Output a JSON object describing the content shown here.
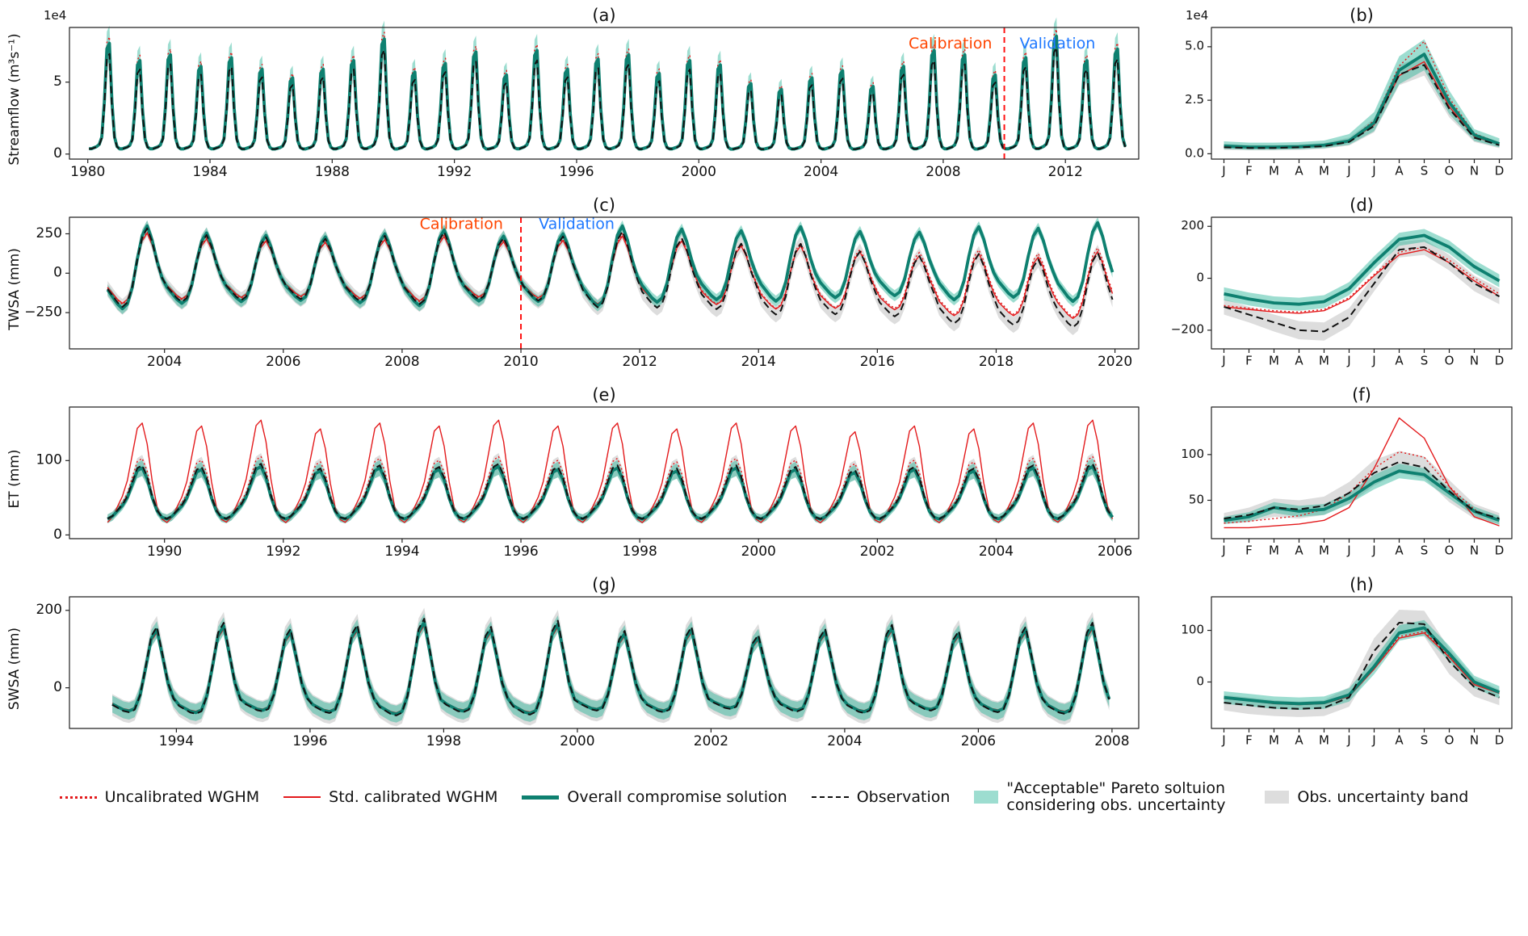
{
  "colors": {
    "red": "#e31a1c",
    "teal": "#0e8070",
    "teal_band": "rgba(38,180,150,0.45)",
    "gray_band": "rgba(180,180,180,0.45)",
    "black": "#111111",
    "calibration": "#ff4500",
    "validation": "#1e78ff",
    "vline": "#ff1111"
  },
  "legend": {
    "items": [
      {
        "swatch": "dotted-red-line",
        "label": "Uncalibrated WGHM"
      },
      {
        "swatch": "solid-red-line",
        "label": "Std. calibrated WGHM"
      },
      {
        "swatch": "thick-teal-line",
        "label": "Overall compromise solution"
      },
      {
        "swatch": "dashed-black-line",
        "label": "Observation"
      },
      {
        "swatch": "teal-band-box",
        "label": "\"Acceptable\" Pareto soltuion considering obs. uncertainty"
      },
      {
        "swatch": "gray-band-box",
        "label": "Obs. uncertainty band"
      }
    ]
  },
  "chart_data": [
    {
      "id": "a",
      "type": "line",
      "kind": "timeseries",
      "panel_label": "(a)",
      "ylabel": "Streamflow (m³s⁻¹)",
      "offset_text": "1e4",
      "year_start": 1980,
      "xticks": [
        1980,
        1984,
        1988,
        1992,
        1996,
        2000,
        2004,
        2008,
        2012
      ],
      "ylim": [
        -0.35,
        8.8
      ],
      "yticks": [
        0,
        5
      ],
      "ytick_labels": [
        "0",
        "5"
      ],
      "base": 0.3,
      "shape": [
        0.01,
        0.01,
        0.02,
        0.03,
        0.05,
        0.12,
        0.45,
        0.95,
        1.0,
        0.45,
        0.12,
        0.03
      ],
      "amp": [
        7.4,
        6.2,
        6.6,
        5.8,
        6.4,
        5.6,
        5.0,
        5.6,
        6.2,
        7.7,
        5.4,
        6.0,
        6.8,
        5.2,
        6.9,
        5.6,
        6.3,
        6.6,
        5.3,
        6.2,
        5.9,
        4.6,
        4.2,
        5.0,
        5.5,
        4.4,
        5.8,
        6.9,
        6.6,
        5.2,
        6.4,
        7.9,
        6.2,
        7.0
      ],
      "series": [
        {
          "name": "uncal",
          "scale": 1.06
        },
        {
          "name": "stdcal",
          "scale": 0.96
        },
        {
          "name": "compromise",
          "scale": 1.0
        },
        {
          "name": "obs",
          "scale": 0.9
        }
      ],
      "bands": [
        {
          "around": "obs",
          "frac": 0.15,
          "min": 0.1,
          "color": "gray_band"
        },
        {
          "around": "compromise",
          "frac": 0.16,
          "min": 0.12,
          "color": "teal_band"
        }
      ],
      "vline": {
        "x": 2010,
        "label_y": 0.87,
        "labels": [
          {
            "text": "Calibration",
            "color": "calibration",
            "x": 2009.6,
            "align": "right"
          },
          {
            "text": "Validation",
            "color": "validation",
            "x": 2010.5,
            "align": "left"
          }
        ]
      }
    },
    {
      "id": "b",
      "type": "line",
      "kind": "monthly",
      "panel_label": "(b)",
      "offset_text": "1e4",
      "months": [
        "J",
        "F",
        "M",
        "A",
        "M",
        "J",
        "J",
        "A",
        "S",
        "O",
        "N",
        "D"
      ],
      "ylim": [
        -0.25,
        5.9
      ],
      "yticks": [
        0.0,
        2.5,
        5.0
      ],
      "ytick_labels": [
        "0.0",
        "2.5",
        "5.0"
      ],
      "series": {
        "uncal": [
          0.38,
          0.33,
          0.32,
          0.33,
          0.38,
          0.62,
          1.55,
          4.1,
          5.25,
          2.6,
          0.95,
          0.5
        ],
        "stdcal": [
          0.32,
          0.29,
          0.29,
          0.31,
          0.36,
          0.56,
          1.35,
          3.65,
          4.3,
          2.2,
          0.8,
          0.42
        ],
        "compromise": [
          0.36,
          0.31,
          0.31,
          0.33,
          0.4,
          0.6,
          1.45,
          3.9,
          4.65,
          2.4,
          0.88,
          0.46
        ],
        "obs": [
          0.3,
          0.27,
          0.27,
          0.3,
          0.35,
          0.55,
          1.3,
          3.7,
          4.15,
          2.1,
          0.75,
          0.4
        ]
      },
      "bands": [
        {
          "color": "gray_band",
          "upper": [
            0.46,
            0.41,
            0.41,
            0.44,
            0.5,
            0.76,
            1.65,
            4.15,
            4.6,
            2.5,
            0.95,
            0.56
          ],
          "lower": [
            0.18,
            0.16,
            0.16,
            0.18,
            0.23,
            0.38,
            1.0,
            3.2,
            3.65,
            1.7,
            0.55,
            0.26
          ]
        },
        {
          "color": "teal_band",
          "upper": [
            0.58,
            0.52,
            0.52,
            0.54,
            0.62,
            0.92,
            1.95,
            4.55,
            5.35,
            2.95,
            1.15,
            0.72
          ],
          "lower": [
            0.22,
            0.19,
            0.19,
            0.21,
            0.26,
            0.42,
            1.05,
            3.25,
            3.9,
            1.85,
            0.6,
            0.3
          ]
        }
      ]
    },
    {
      "id": "c",
      "type": "line",
      "kind": "timeseries",
      "panel_label": "(c)",
      "ylabel": "TWSA (mm)",
      "year_start": 2003,
      "xticks": [
        2004,
        2006,
        2008,
        2010,
        2012,
        2014,
        2016,
        2018,
        2020
      ],
      "ylim": [
        -480,
        355
      ],
      "yticks": [
        -250,
        0,
        250
      ],
      "ytick_labels": [
        "−250",
        "0",
        "250"
      ],
      "base": 0,
      "shape": [
        -0.35,
        -0.5,
        -0.65,
        -0.75,
        -0.65,
        -0.3,
        0.3,
        0.8,
        1.0,
        0.7,
        0.25,
        -0.1
      ],
      "amp": [
        300,
        255,
        240,
        230,
        250,
        275,
        235,
        245,
        290,
        265,
        250,
        270,
        240,
        230,
        265,
        250,
        285
      ],
      "series": [
        {
          "name": "uncal",
          "scale": 0.88,
          "trend": [
            0,
            0,
            0,
            0,
            0,
            0,
            0,
            0,
            -5,
            -15,
            -30,
            -45,
            -60,
            -70,
            -85,
            -95,
            -90
          ]
        },
        {
          "name": "stdcal",
          "scale": 0.85,
          "trend": [
            0,
            0,
            0,
            0,
            0,
            0,
            0,
            0,
            -10,
            -20,
            -40,
            -55,
            -70,
            -85,
            -100,
            -110,
            -105
          ]
        },
        {
          "name": "compromise",
          "scale": 1.0,
          "trend": [
            0,
            0,
            0,
            0,
            0,
            0,
            0,
            5,
            10,
            15,
            20,
            25,
            25,
            30,
            30,
            35,
            35
          ]
        },
        {
          "name": "obs",
          "scale": 0.95,
          "trend": [
            0,
            0,
            0,
            0,
            0,
            0,
            0,
            0,
            -10,
            -30,
            -50,
            -70,
            -90,
            -110,
            -130,
            -150,
            -140
          ]
        }
      ],
      "bands": [
        {
          "around": "obs",
          "abs": 50,
          "color": "gray_band"
        },
        {
          "around": "compromise",
          "abs": 35,
          "color": "teal_band"
        }
      ],
      "vline": {
        "x": 2010,
        "label_y": 0.94,
        "labels": [
          {
            "text": "Calibration",
            "color": "calibration",
            "x": 2009.7,
            "align": "right"
          },
          {
            "text": "Validation",
            "color": "validation",
            "x": 2010.3,
            "align": "left"
          }
        ]
      }
    },
    {
      "id": "d",
      "type": "line",
      "kind": "monthly",
      "panel_label": "(d)",
      "months": [
        "J",
        "F",
        "M",
        "A",
        "M",
        "J",
        "J",
        "A",
        "S",
        "O",
        "N",
        "D"
      ],
      "ylim": [
        -272,
        235
      ],
      "yticks": [
        -200,
        0,
        200
      ],
      "ytick_labels": [
        "−200",
        "0",
        "200"
      ],
      "series": {
        "uncal": [
          -105,
          -115,
          -125,
          -130,
          -120,
          -75,
          15,
          100,
          120,
          70,
          0,
          -60
        ],
        "stdcal": [
          -110,
          -120,
          -130,
          -135,
          -125,
          -80,
          10,
          90,
          110,
          60,
          -10,
          -70
        ],
        "compromise": [
          -60,
          -80,
          -95,
          -100,
          -90,
          -40,
          60,
          150,
          165,
          120,
          45,
          -10
        ],
        "obs": [
          -110,
          -140,
          -170,
          -200,
          -205,
          -150,
          -20,
          110,
          120,
          60,
          -20,
          -70
        ]
      },
      "bands": [
        {
          "color": "gray_band",
          "upper": [
            -80,
            -110,
            -140,
            -165,
            -170,
            -115,
            10,
            140,
            150,
            90,
            10,
            -40
          ],
          "lower": [
            -140,
            -170,
            -205,
            -235,
            -240,
            -185,
            -50,
            80,
            90,
            30,
            -50,
            -100
          ]
        },
        {
          "color": "teal_band",
          "upper": [
            -35,
            -55,
            -70,
            -75,
            -65,
            -15,
            85,
            175,
            190,
            145,
            70,
            15
          ],
          "lower": [
            -85,
            -105,
            -120,
            -125,
            -115,
            -65,
            35,
            125,
            140,
            95,
            20,
            -35
          ]
        }
      ]
    },
    {
      "id": "e",
      "type": "line",
      "kind": "timeseries",
      "panel_label": "(e)",
      "ylabel": "ET (mm)",
      "year_start": 1989,
      "xticks": [
        1990,
        1992,
        1994,
        1996,
        1998,
        2000,
        2002,
        2004,
        2006
      ],
      "ylim": [
        -5,
        172
      ],
      "yticks": [
        0,
        100
      ],
      "ytick_labels": [
        "0",
        "100"
      ],
      "base": 18,
      "shape": [
        0.05,
        0.1,
        0.2,
        0.3,
        0.45,
        0.7,
        0.95,
        1.0,
        0.8,
        0.45,
        0.2,
        0.08
      ],
      "amp": [
        72,
        70,
        74,
        68,
        72,
        70,
        74,
        70,
        72,
        68,
        72,
        70,
        66,
        70,
        68,
        72,
        74
      ],
      "series": [
        {
          "name": "uncal",
          "scale": 1.18
        },
        {
          "name": "stdcal",
          "scale": 1.95,
          "offset": -8
        },
        {
          "name": "compromise",
          "scale": 1.0
        },
        {
          "name": "obs",
          "scale": 1.05
        }
      ],
      "bands": [
        {
          "around": "obs",
          "frac": 0.15,
          "min": 6,
          "color": "gray_band"
        },
        {
          "around": "compromise",
          "frac": 0.12,
          "min": 6,
          "color": "teal_band"
        }
      ]
    },
    {
      "id": "f",
      "type": "line",
      "kind": "monthly",
      "panel_label": "(f)",
      "months": [
        "J",
        "F",
        "M",
        "A",
        "M",
        "J",
        "J",
        "A",
        "S",
        "O",
        "N",
        "D"
      ],
      "ylim": [
        8,
        152
      ],
      "yticks": [
        50,
        100
      ],
      "ytick_labels": [
        "50",
        "100"
      ],
      "series": {
        "uncal": [
          25,
          27,
          30,
          33,
          40,
          58,
          85,
          103,
          97,
          65,
          40,
          28
        ],
        "stdcal": [
          20,
          20,
          22,
          24,
          28,
          42,
          85,
          140,
          118,
          65,
          32,
          22
        ],
        "compromise": [
          28,
          32,
          42,
          38,
          40,
          52,
          70,
          82,
          78,
          58,
          38,
          28
        ],
        "obs": [
          30,
          34,
          42,
          40,
          44,
          58,
          80,
          92,
          86,
          60,
          38,
          30
        ]
      },
      "bands": [
        {
          "color": "gray_band",
          "upper": [
            36,
            42,
            52,
            50,
            54,
            70,
            94,
            104,
            98,
            72,
            46,
            36
          ],
          "lower": [
            24,
            26,
            32,
            30,
            34,
            46,
            66,
            80,
            74,
            48,
            30,
            24
          ]
        },
        {
          "color": "teal_band",
          "upper": [
            32,
            37,
            48,
            44,
            46,
            58,
            78,
            90,
            85,
            64,
            43,
            33
          ],
          "lower": [
            24,
            27,
            36,
            32,
            34,
            46,
            62,
            74,
            71,
            52,
            33,
            23
          ]
        }
      ]
    },
    {
      "id": "g",
      "type": "line",
      "kind": "timeseries",
      "panel_label": "(g)",
      "ylabel": "SWSA (mm)",
      "year_start": 1993,
      "xticks": [
        1994,
        1996,
        1998,
        2000,
        2002,
        2004,
        2006,
        2008
      ],
      "ylim": [
        -105,
        235
      ],
      "yticks": [
        0,
        200
      ],
      "ytick_labels": [
        "0",
        "200"
      ],
      "base": 0,
      "shape": [
        -0.28,
        -0.33,
        -0.38,
        -0.4,
        -0.36,
        -0.12,
        0.35,
        0.85,
        1.0,
        0.55,
        0.08,
        -0.18
      ],
      "amp": [
        150,
        160,
        145,
        155,
        170,
        150,
        165,
        140,
        150,
        130,
        145,
        155,
        140,
        150,
        160
      ],
      "series": [
        {
          "name": "uncal",
          "scale": 0.97
        },
        {
          "name": "stdcal",
          "scale": 0.95
        },
        {
          "name": "compromise",
          "scale": 1.0
        },
        {
          "name": "obs",
          "scale": 1.05
        }
      ],
      "bands": [
        {
          "around": "obs",
          "abs": 28,
          "color": "gray_band"
        },
        {
          "around": "compromise",
          "abs": 22,
          "color": "teal_band"
        }
      ]
    },
    {
      "id": "h",
      "type": "line",
      "kind": "monthly",
      "panel_label": "(h)",
      "months": [
        "J",
        "F",
        "M",
        "A",
        "M",
        "J",
        "J",
        "A",
        "S",
        "O",
        "N",
        "D"
      ],
      "ylim": [
        -90,
        165
      ],
      "yticks": [
        0,
        100
      ],
      "ytick_labels": [
        "0",
        "100"
      ],
      "series": {
        "uncal": [
          -30,
          -34,
          -40,
          -42,
          -40,
          -26,
          28,
          88,
          98,
          50,
          -2,
          -20
        ],
        "stdcal": [
          -32,
          -36,
          -42,
          -44,
          -42,
          -28,
          25,
          85,
          95,
          48,
          -5,
          -22
        ],
        "compromise": [
          -30,
          -35,
          -40,
          -42,
          -40,
          -25,
          30,
          95,
          105,
          55,
          0,
          -20
        ],
        "obs": [
          -40,
          -45,
          -50,
          -52,
          -50,
          -30,
          60,
          115,
          112,
          40,
          -10,
          -30
        ]
      },
      "bands": [
        {
          "color": "gray_band",
          "upper": [
            -25,
            -30,
            -35,
            -38,
            -35,
            -10,
            85,
            140,
            138,
            65,
            8,
            -15
          ],
          "lower": [
            -55,
            -62,
            -66,
            -68,
            -66,
            -48,
            35,
            92,
            88,
            15,
            -28,
            -45
          ]
        },
        {
          "color": "teal_band",
          "upper": [
            -18,
            -23,
            -28,
            -30,
            -28,
            -12,
            45,
            110,
            120,
            70,
            12,
            -8
          ],
          "lower": [
            -42,
            -47,
            -52,
            -54,
            -52,
            -38,
            15,
            80,
            90,
            40,
            -12,
            -32
          ]
        }
      ]
    }
  ]
}
